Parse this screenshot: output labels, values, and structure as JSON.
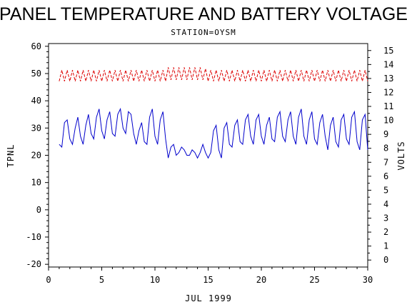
{
  "chart_data": {
    "type": "line",
    "title": "PANEL TEMPERATURE AND BATTERY VOLTAGE",
    "subtitle": "STATION=OYSM",
    "xlabel": "JUL 1999",
    "ylabel_left": "TPNL",
    "ylabel_right": "VOLTS",
    "xlim": [
      0,
      30
    ],
    "ylim_left": [
      -21,
      61
    ],
    "ylim_right": [
      -0.5,
      15.5
    ],
    "x_ticks": [
      0,
      5,
      10,
      15,
      20,
      25,
      30
    ],
    "y_left_ticks": [
      -20,
      -10,
      0,
      10,
      20,
      30,
      40,
      50,
      60
    ],
    "y_right_ticks": [
      0,
      1,
      2,
      3,
      4,
      5,
      6,
      7,
      8,
      9,
      10,
      11,
      12,
      13,
      14,
      15
    ],
    "grid": false,
    "series": [
      {
        "name": "TPNL",
        "axis": "left",
        "color": "#0000cc",
        "style": "solid",
        "x": [
          1.0,
          1.25,
          1.5,
          1.75,
          2.0,
          2.25,
          2.5,
          2.75,
          3.0,
          3.25,
          3.5,
          3.75,
          4.0,
          4.25,
          4.5,
          4.75,
          5.0,
          5.25,
          5.5,
          5.75,
          6.0,
          6.25,
          6.5,
          6.75,
          7.0,
          7.25,
          7.5,
          7.75,
          8.0,
          8.25,
          8.5,
          8.75,
          9.0,
          9.25,
          9.5,
          9.75,
          10.0,
          10.25,
          10.5,
          10.75,
          11.0,
          11.25,
          11.5,
          11.75,
          12.0,
          12.25,
          12.5,
          12.75,
          13.0,
          13.25,
          13.5,
          13.75,
          14.0,
          14.25,
          14.5,
          14.75,
          15.0,
          15.25,
          15.5,
          15.75,
          16.0,
          16.25,
          16.5,
          16.75,
          17.0,
          17.25,
          17.5,
          17.75,
          18.0,
          18.25,
          18.5,
          18.75,
          19.0,
          19.25,
          19.5,
          19.75,
          20.0,
          20.25,
          20.5,
          20.75,
          21.0,
          21.25,
          21.5,
          21.75,
          22.0,
          22.25,
          22.5,
          22.75,
          23.0,
          23.25,
          23.5,
          23.75,
          24.0,
          24.25,
          24.5,
          24.75,
          25.0,
          25.25,
          25.5,
          25.75,
          26.0,
          26.25,
          26.5,
          26.75,
          27.0,
          27.25,
          27.5,
          27.75,
          28.0,
          28.25,
          28.5,
          28.75,
          29.0,
          29.25,
          29.5,
          29.75,
          30.0
        ],
        "y": [
          24,
          23,
          32,
          33,
          26,
          24,
          30,
          34,
          27,
          24,
          31,
          35,
          28,
          26,
          34,
          37,
          29,
          26,
          33,
          36,
          28,
          27,
          35,
          37,
          30,
          28,
          36,
          35,
          28,
          24,
          29,
          32,
          25,
          24,
          34,
          37,
          27,
          24,
          33,
          36,
          26,
          19,
          23,
          24,
          20,
          21,
          23,
          22,
          20,
          20,
          22,
          21,
          19,
          21,
          24,
          21,
          19,
          21,
          29,
          31,
          22,
          19,
          30,
          32,
          24,
          23,
          31,
          33,
          25,
          24,
          33,
          35,
          27,
          24,
          33,
          35,
          27,
          24,
          31,
          34,
          26,
          25,
          34,
          36,
          27,
          25,
          33,
          36,
          27,
          24,
          34,
          37,
          27,
          24,
          33,
          36,
          26,
          24,
          32,
          35,
          27,
          22,
          31,
          34,
          25,
          23,
          33,
          35,
          26,
          24,
          34,
          36,
          25,
          22,
          33,
          35,
          22
        ]
      },
      {
        "name": "VOLTS",
        "axis": "right",
        "color": "#dd0000",
        "style": "dashed",
        "x": [
          1.0,
          1.25,
          1.5,
          1.75,
          2.0,
          2.25,
          2.5,
          2.75,
          3.0,
          3.25,
          3.5,
          3.75,
          4.0,
          4.25,
          4.5,
          4.75,
          5.0,
          5.25,
          5.5,
          5.75,
          6.0,
          6.25,
          6.5,
          6.75,
          7.0,
          7.25,
          7.5,
          7.75,
          8.0,
          8.25,
          8.5,
          8.75,
          9.0,
          9.25,
          9.5,
          9.75,
          10.0,
          10.25,
          10.5,
          10.75,
          11.0,
          11.25,
          11.5,
          11.75,
          12.0,
          12.25,
          12.5,
          12.75,
          13.0,
          13.25,
          13.5,
          13.75,
          14.0,
          14.25,
          14.5,
          14.75,
          15.0,
          15.25,
          15.5,
          15.75,
          16.0,
          16.25,
          16.5,
          16.75,
          17.0,
          17.25,
          17.5,
          17.75,
          18.0,
          18.25,
          18.5,
          18.75,
          19.0,
          19.25,
          19.5,
          19.75,
          20.0,
          20.25,
          20.5,
          20.75,
          21.0,
          21.25,
          21.5,
          21.75,
          22.0,
          22.25,
          22.5,
          22.75,
          23.0,
          23.25,
          23.5,
          23.75,
          24.0,
          24.25,
          24.5,
          24.75,
          25.0,
          25.25,
          25.5,
          25.75,
          26.0,
          26.25,
          26.5,
          26.75,
          27.0,
          27.25,
          27.5,
          27.75,
          28.0,
          28.25,
          28.5,
          28.75,
          29.0,
          29.25,
          29.5,
          29.75,
          30.0
        ],
        "y": [
          12.8,
          13.6,
          12.8,
          13.6,
          12.8,
          13.6,
          12.8,
          13.6,
          12.8,
          13.6,
          12.8,
          13.6,
          12.8,
          13.6,
          12.8,
          13.6,
          12.8,
          13.6,
          12.8,
          13.6,
          12.8,
          13.6,
          12.8,
          13.6,
          12.8,
          13.6,
          12.8,
          13.6,
          12.8,
          13.6,
          12.8,
          13.6,
          12.8,
          13.6,
          12.8,
          13.6,
          12.8,
          13.6,
          12.8,
          13.6,
          12.8,
          13.8,
          12.9,
          13.8,
          12.9,
          13.8,
          12.9,
          13.8,
          12.9,
          13.8,
          12.9,
          13.8,
          12.9,
          13.8,
          12.9,
          13.7,
          12.8,
          13.6,
          12.8,
          13.6,
          12.8,
          13.6,
          12.8,
          13.6,
          12.8,
          13.6,
          12.8,
          13.6,
          12.8,
          13.6,
          12.8,
          13.6,
          12.8,
          13.6,
          12.8,
          13.6,
          12.8,
          13.6,
          12.8,
          13.6,
          12.8,
          13.6,
          12.8,
          13.6,
          12.8,
          13.6,
          12.8,
          13.6,
          12.8,
          13.6,
          12.8,
          13.6,
          12.8,
          13.6,
          12.8,
          13.6,
          12.8,
          13.6,
          12.8,
          13.6,
          12.8,
          13.6,
          12.8,
          13.6,
          12.8,
          13.6,
          12.8,
          13.6,
          12.8,
          13.6,
          12.8,
          13.6,
          12.8,
          13.6,
          12.8,
          13.6,
          12.8
        ]
      }
    ]
  }
}
